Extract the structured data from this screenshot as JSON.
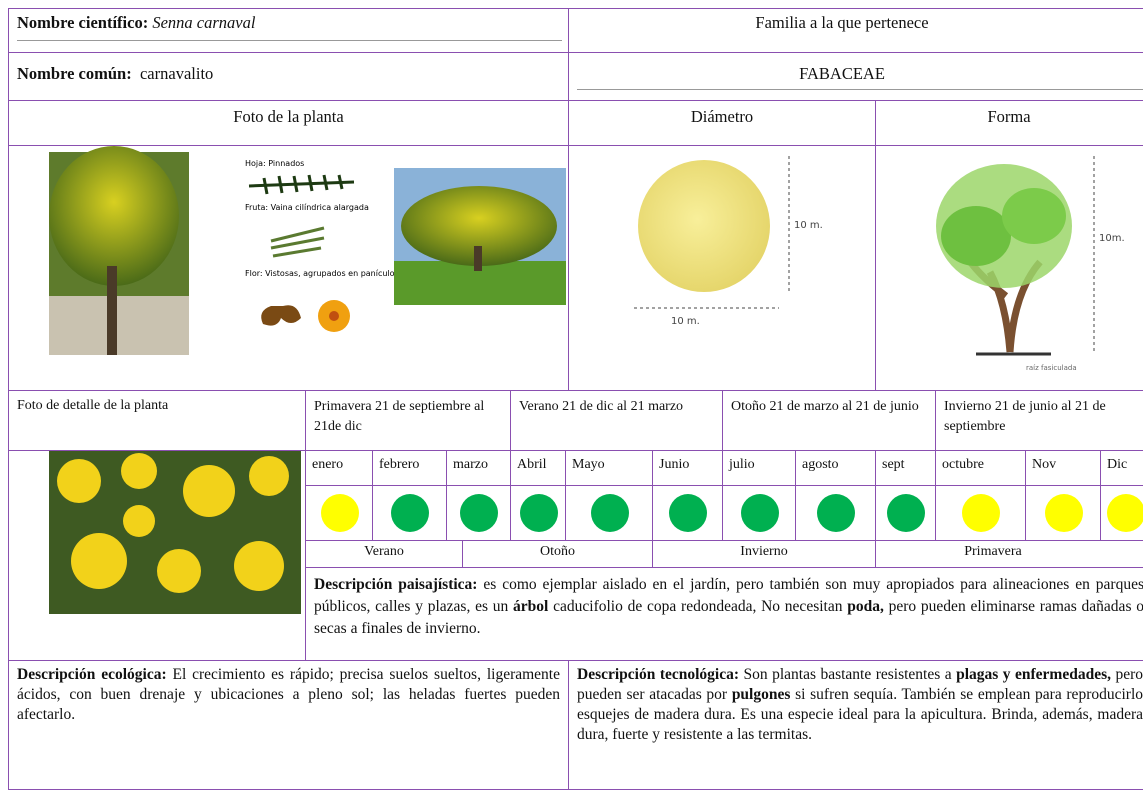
{
  "header": {
    "scientific_name_label": "Nombre científico:",
    "scientific_name": "Senna carnaval",
    "family_label": "Familia a la que pertenece",
    "common_name_label": "Nombre común:",
    "common_name": "carnavalito",
    "family": "FABACEAE"
  },
  "sections": {
    "photo": "Foto de la planta",
    "diameter": "Diámetro",
    "shape": "Forma",
    "detail_photo": "Foto de detalle de la planta"
  },
  "illustration": {
    "leaf": "Hoja: Pinnados",
    "fruit": "Fruta: Vaina cilíndrica alargada",
    "flower": "Flor: Vistosas, agrupados en panículos, amarillos"
  },
  "diameter_diagram": {
    "height": "10 m.",
    "width": "10 m."
  },
  "shape_diagram": {
    "height": "10m.",
    "root": "raíz fasiculada"
  },
  "seasons": [
    "Primavera 21 de septiembre al 21de dic",
    "Verano 21 de dic al 21 marzo",
    "Otoño 21 de marzo al 21 de junio",
    "Invierno 21 de junio al 21 de septiembre"
  ],
  "months": [
    "enero",
    "febrero",
    "marzo",
    "Abril",
    "Mayo",
    "Junio",
    "julio",
    "agosto",
    "sept",
    "octubre",
    "Nov",
    "Dic"
  ],
  "dot_colors": [
    "#ffff00",
    "#00b050",
    "#00b050",
    "#00b050",
    "#00b050",
    "#00b050",
    "#00b050",
    "#00b050",
    "#00b050",
    "#ffff00",
    "#ffff00",
    "#ffff00"
  ],
  "periods": [
    "Verano",
    "Otoño",
    "Invierno",
    "Primavera"
  ],
  "descriptions": {
    "landscape": {
      "label": "Descripción paisajística:",
      "parts": [
        " es como ejemplar aislado en el jardín, pero también son muy apropiados para alineaciones en parques públicos, calles y plazas, es un ",
        "árbol",
        " caducifolio de copa redondeada, No necesitan ",
        "poda,",
        " pero pueden eliminarse ramas dañadas o secas a finales de invierno."
      ]
    },
    "ecological": {
      "label": "Descripción ecológica:",
      "parts": [
        " El crecimiento es rápido; precisa suelos sueltos, ligeramente ácidos, con buen drenaje y ubicaciones a pleno sol; las heladas fuertes pueden afectarlo."
      ]
    },
    "technological": {
      "label": "Descripción tecnológica:",
      "parts": [
        " Son plantas bastante resistentes a ",
        "plagas y enfermedades,",
        " pero pueden ser atacadas por ",
        "pulgones",
        " si sufren sequía. También se emplean para reproducirlo esquejes de madera dura. Es una especie ideal para la apicultura. Brinda, además, madera dura, fuerte y resistente a las termitas."
      ]
    }
  }
}
